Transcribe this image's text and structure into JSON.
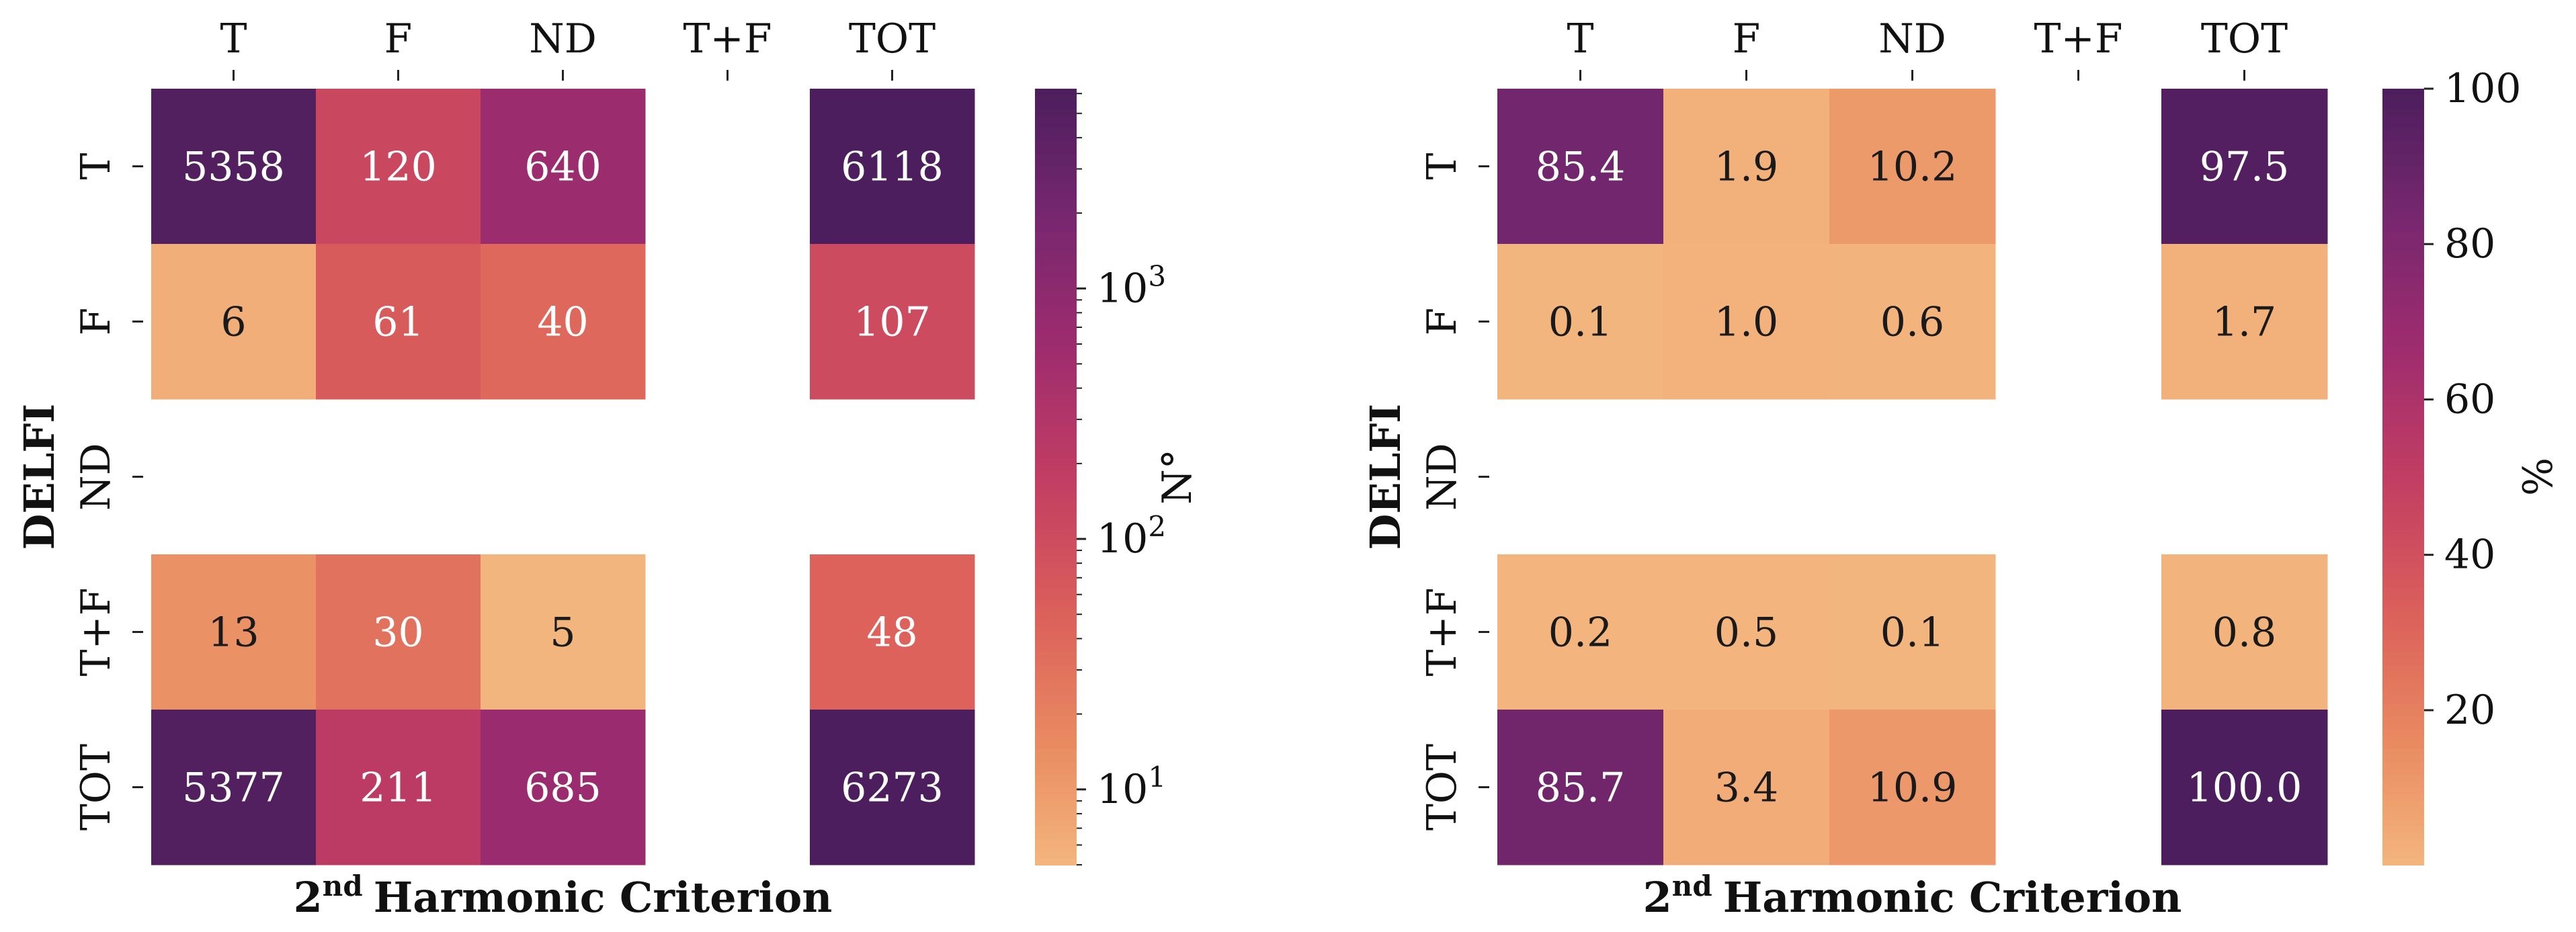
{
  "chart_data": [
    {
      "type": "heatmap",
      "name": "counts",
      "xlabel": "Harmonic Criterion",
      "xlabel_prefix": "2",
      "xlabel_sup": "nd",
      "ylabel": "DELFI",
      "x_categories": [
        "T",
        "F",
        "ND",
        "T+F",
        "TOT"
      ],
      "y_categories": [
        "T",
        "F",
        "ND",
        "T+F",
        "TOT"
      ],
      "values": [
        [
          5358,
          120,
          640,
          null,
          6118
        ],
        [
          6,
          61,
          40,
          null,
          107
        ],
        [
          null,
          null,
          null,
          null,
          null
        ],
        [
          13,
          30,
          5,
          null,
          48
        ],
        [
          5377,
          211,
          685,
          null,
          6273
        ]
      ],
      "value_labels": [
        [
          "5358",
          "120",
          "640",
          "",
          "6118"
        ],
        [
          "6",
          "61",
          "40",
          "",
          "107"
        ],
        [
          "",
          "",
          "",
          "",
          ""
        ],
        [
          "13",
          "30",
          "5",
          "",
          "48"
        ],
        [
          "5377",
          "211",
          "685",
          "",
          "6273"
        ]
      ],
      "scale": "log",
      "color_range": [
        5,
        6273
      ],
      "colorbar": {
        "label": "N°",
        "ticks": [
          {
            "value": 10,
            "base": "10",
            "exp": "1"
          },
          {
            "value": 100,
            "base": "10",
            "exp": "2"
          },
          {
            "value": 1000,
            "base": "10",
            "exp": "3"
          }
        ]
      }
    },
    {
      "type": "heatmap",
      "name": "percentages",
      "xlabel": "Harmonic Criterion",
      "xlabel_prefix": "2",
      "xlabel_sup": "nd",
      "ylabel": "DELFI",
      "x_categories": [
        "T",
        "F",
        "ND",
        "T+F",
        "TOT"
      ],
      "y_categories": [
        "T",
        "F",
        "ND",
        "T+F",
        "TOT"
      ],
      "values": [
        [
          85.4,
          1.9,
          10.2,
          null,
          97.5
        ],
        [
          0.1,
          1.0,
          0.6,
          null,
          1.7
        ],
        [
          null,
          null,
          null,
          null,
          null
        ],
        [
          0.2,
          0.5,
          0.1,
          null,
          0.8
        ],
        [
          85.7,
          3.4,
          10.9,
          null,
          100.0
        ]
      ],
      "value_labels": [
        [
          "85.4",
          "1.9",
          "10.2",
          "",
          "97.5"
        ],
        [
          "0.1",
          "1.0",
          "0.6",
          "",
          "1.7"
        ],
        [
          "",
          "",
          "",
          "",
          ""
        ],
        [
          "0.2",
          "0.5",
          "0.1",
          "",
          "0.8"
        ],
        [
          "85.7",
          "3.4",
          "10.9",
          "",
          "100.0"
        ]
      ],
      "scale": "linear",
      "color_range": [
        0.1,
        100
      ],
      "colorbar": {
        "label": "%",
        "ticks": [
          {
            "value": 20,
            "text": "20"
          },
          {
            "value": 40,
            "text": "40"
          },
          {
            "value": 60,
            "text": "60"
          },
          {
            "value": 80,
            "text": "80"
          },
          {
            "value": 100,
            "text": "100"
          }
        ]
      }
    }
  ],
  "colormap": [
    "#fbeec5",
    "#f4b77f",
    "#e98a61",
    "#db5f5b",
    "#c23e62",
    "#9f2c6e",
    "#78276f",
    "#4c1e5d"
  ]
}
